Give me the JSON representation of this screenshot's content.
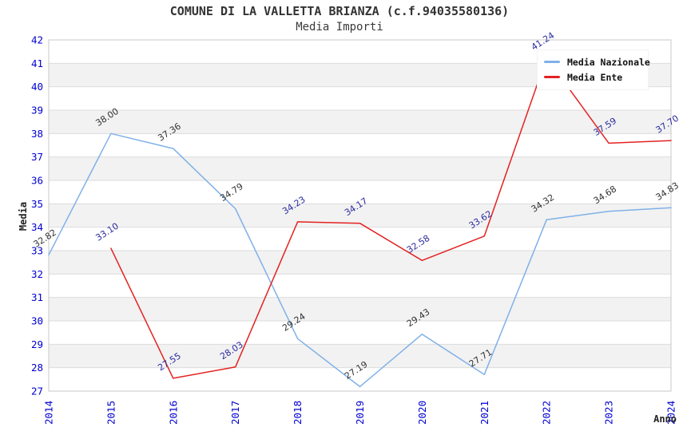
{
  "page": {
    "title": "COMUNE DI LA VALLETTA BRIANZA (c.f.94035580136)",
    "subtitle": "Media Importi"
  },
  "chart_data": {
    "type": "line",
    "title": "COMUNE DI LA VALLETTA BRIANZA (c.f.94035580136)",
    "subtitle": "Media Importi",
    "xlabel": "Anno",
    "ylabel": "Media",
    "ylim": [
      27,
      42
    ],
    "ytick_step": 1,
    "categories": [
      2014,
      2015,
      2016,
      2017,
      2018,
      2019,
      2020,
      2021,
      2022,
      2023,
      2024
    ],
    "grid": "horizontal-bands",
    "legend_position": "top-right",
    "axis_tick_color": "#0000D2",
    "band_color": "#F2F2F2",
    "grid_color": "#DCDCDC",
    "border_color": "#C8C8C8",
    "series": [
      {
        "name": "Media Nazionale",
        "color": "#7FB1E8",
        "label_color": "#333333",
        "x": [
          2014,
          2015,
          2016,
          2017,
          2018,
          2019,
          2020,
          2021,
          2022,
          2023,
          2024
        ],
        "values": [
          32.82,
          38.0,
          37.36,
          34.79,
          29.24,
          27.19,
          29.43,
          27.71,
          34.32,
          34.68,
          34.83
        ],
        "labels": [
          "32.82",
          "38.00",
          "37.36",
          "34.79",
          "29.24",
          "27.19",
          "29.43",
          "27.71",
          "34.32",
          "34.68",
          "34.83"
        ]
      },
      {
        "name": "Media Ente",
        "color": "#E42222",
        "label_color": "#2B2BA0",
        "x": [
          2015,
          2016,
          2017,
          2018,
          2019,
          2020,
          2021,
          2022,
          2023,
          2024
        ],
        "values": [
          33.1,
          27.55,
          28.03,
          34.23,
          34.17,
          32.58,
          33.62,
          41.24,
          37.59,
          37.7
        ],
        "labels": [
          "33.10",
          "27.55",
          "28.03",
          "34.23",
          "34.17",
          "32.58",
          "33.62",
          "41.24",
          "37.59",
          "37.70"
        ]
      }
    ]
  }
}
